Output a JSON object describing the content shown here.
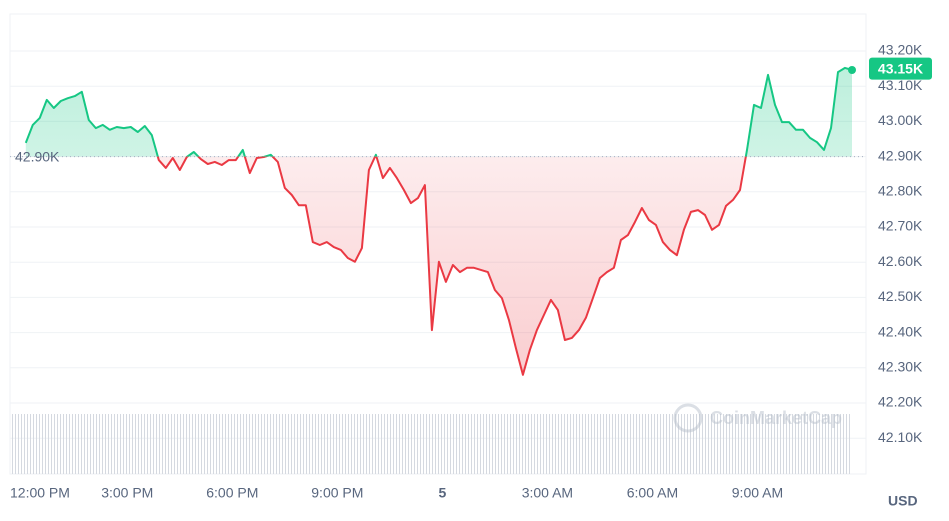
{
  "chart_data": {
    "type": "line",
    "x": [
      0.1,
      0.3,
      0.5,
      0.7,
      0.9,
      1.1,
      1.3,
      1.5,
      1.7,
      1.9,
      2.1,
      2.3,
      2.5,
      2.7,
      2.9,
      3.1,
      3.3,
      3.5,
      3.7,
      3.9,
      4.1,
      4.3,
      4.5,
      4.7,
      4.9,
      5.1,
      5.3,
      5.5,
      5.7,
      5.9,
      6.1,
      6.3,
      6.5,
      6.7,
      6.9,
      7.1,
      7.3,
      7.5,
      7.7,
      7.9,
      8.1,
      8.3,
      8.5,
      8.7,
      8.9,
      9.1,
      9.3,
      9.5,
      9.7,
      9.9,
      10.1,
      10.3,
      10.5,
      10.7,
      10.9,
      11.1,
      11.3,
      11.5,
      11.7,
      11.9,
      12.1,
      12.3,
      12.5,
      12.7,
      12.9,
      13.1,
      13.3,
      13.5,
      13.7,
      13.9,
      14.1,
      14.3,
      14.5,
      14.7,
      14.9,
      15.1,
      15.3,
      15.5,
      15.7,
      15.9,
      16.1,
      16.3,
      16.5,
      16.7,
      16.9,
      17.1,
      17.3,
      17.5,
      17.7,
      17.9,
      18.1,
      18.3,
      18.5,
      18.7,
      18.9,
      19.1,
      19.3,
      19.5,
      19.7,
      19.9,
      20.1,
      20.3,
      20.5,
      20.7,
      20.9,
      21.1,
      21.3,
      21.5,
      21.7,
      21.9,
      22.1,
      22.3,
      22.5,
      22.7,
      22.9,
      23.1,
      23.3,
      23.5,
      23.7
    ],
    "values": [
      42939,
      42990,
      43010,
      43061,
      43038,
      43058,
      43066,
      43072,
      43084,
      43004,
      42981,
      42990,
      42976,
      42984,
      42981,
      42984,
      42970,
      42987,
      42961,
      42890,
      42868,
      42896,
      42862,
      42899,
      42913,
      42893,
      42879,
      42885,
      42876,
      42890,
      42890,
      42919,
      42853,
      42896,
      42899,
      42905,
      42885,
      42811,
      42791,
      42762,
      42762,
      42657,
      42649,
      42657,
      42643,
      42635,
      42612,
      42601,
      42640,
      42862,
      42905,
      42839,
      42868,
      42839,
      42805,
      42768,
      42782,
      42819,
      42407,
      42601,
      42544,
      42592,
      42572,
      42584,
      42584,
      42578,
      42572,
      42521,
      42498,
      42436,
      42356,
      42280,
      42351,
      42407,
      42450,
      42493,
      42464,
      42379,
      42385,
      42407,
      42442,
      42498,
      42555,
      42572,
      42584,
      42663,
      42677,
      42714,
      42754,
      42720,
      42706,
      42657,
      42635,
      42620,
      42692,
      42743,
      42748,
      42734,
      42692,
      42706,
      42760,
      42777,
      42805,
      42919,
      43047,
      43038,
      43132,
      43047,
      42998,
      42998,
      42976,
      42976,
      42953,
      42941,
      42919,
      42981,
      43140,
      43152,
      43146
    ],
    "up_color": "#16c784",
    "down_color": "#ea3943",
    "baseline": {
      "value": 42900,
      "label": "42.90K"
    },
    "current": {
      "value": 43150,
      "label": "43.15K"
    },
    "xlim": [
      -0.35,
      24.1
    ],
    "xticks": [
      {
        "value": 0,
        "label": "12:00 PM"
      },
      {
        "value": 3,
        "label": "3:00 PM"
      },
      {
        "value": 6,
        "label": "6:00 PM"
      },
      {
        "value": 9,
        "label": "9:00 PM"
      },
      {
        "value": 12,
        "label": "5"
      },
      {
        "value": 15,
        "label": "3:00 AM"
      },
      {
        "value": 18,
        "label": "6:00 AM"
      },
      {
        "value": 21,
        "label": "9:00 AM"
      }
    ],
    "ylim": [
      42000,
      43300
    ],
    "yticks": [
      {
        "value": 42100,
        "label": "42.10K"
      },
      {
        "value": 42200,
        "label": "42.20K"
      },
      {
        "value": 42300,
        "label": "42.30K"
      },
      {
        "value": 42400,
        "label": "42.40K"
      },
      {
        "value": 42500,
        "label": "42.50K"
      },
      {
        "value": 42600,
        "label": "42.60K"
      },
      {
        "value": 42700,
        "label": "42.70K"
      },
      {
        "value": 42800,
        "label": "42.80K"
      },
      {
        "value": 42900,
        "label": "42.90K"
      },
      {
        "value": 43000,
        "label": "43.00K"
      },
      {
        "value": 43100,
        "label": "43.10K"
      },
      {
        "value": 43200,
        "label": "43.20K"
      }
    ],
    "grid": true,
    "currency": "USD",
    "watermark": "CoinMarketCap"
  }
}
